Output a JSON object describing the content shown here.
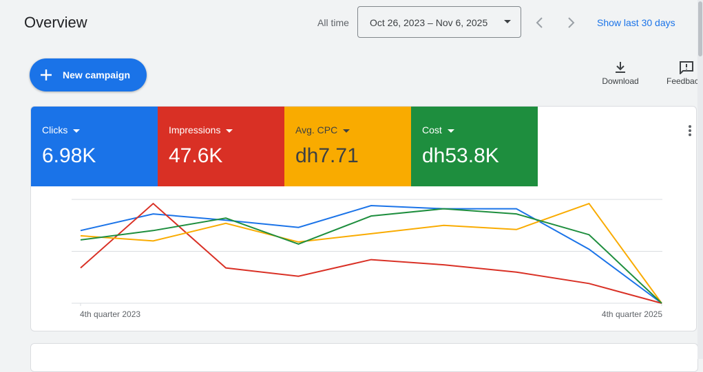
{
  "header": {
    "title": "Overview",
    "range_label": "All time",
    "date_range": "Oct 26, 2023 – Nov 6, 2025",
    "shortcut": "Show last 30 days"
  },
  "toolbar": {
    "new_campaign": "New campaign",
    "download": "Download",
    "feedback": "Feedback"
  },
  "scorecards": [
    {
      "label": "Clicks",
      "value": "6.98K",
      "color": "#1a73e8"
    },
    {
      "label": "Impressions",
      "value": "47.6K",
      "color": "#d93025"
    },
    {
      "label": "Avg. CPC",
      "value": "dh7.71",
      "color": "#f9ab00"
    },
    {
      "label": "Cost",
      "value": "dh53.8K",
      "color": "#1e8e3e"
    }
  ],
  "chart_data": {
    "type": "line",
    "categories": [
      "4th quarter 2023",
      null,
      null,
      null,
      null,
      null,
      null,
      null,
      "4th quarter 2025"
    ],
    "series": [
      {
        "color": "#1a73e8",
        "values": [
          70,
          86,
          80,
          73,
          94,
          91,
          91,
          52,
          0
        ]
      },
      {
        "color": "#d93025",
        "values": [
          34,
          96,
          34,
          26,
          42,
          37,
          30,
          19,
          0
        ]
      },
      {
        "color": "#f9ab00",
        "values": [
          65,
          60,
          77,
          59,
          67,
          75,
          71,
          96,
          0
        ]
      },
      {
        "color": "#1e8e3e",
        "values": [
          61,
          70,
          82,
          57,
          84,
          91,
          86,
          66,
          0
        ]
      }
    ],
    "ylim": [
      0,
      100
    ],
    "yticks": [
      0,
      50,
      100
    ],
    "grid": true
  }
}
